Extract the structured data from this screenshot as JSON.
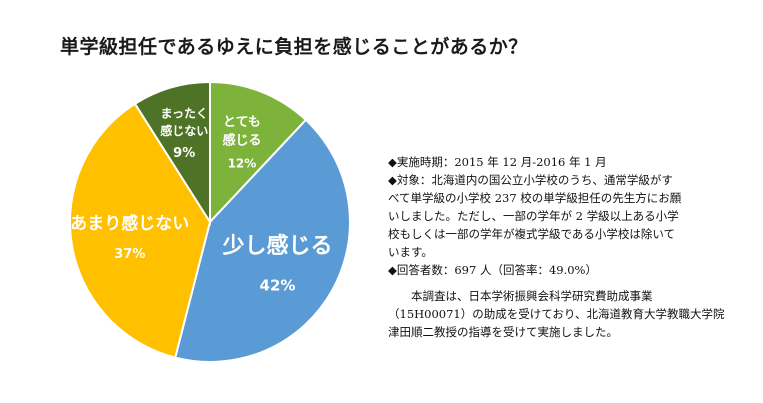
{
  "chart_data": {
    "type": "pie",
    "title": "単学級担任であるゆえに負担を感じることがあるか？",
    "slices": [
      {
        "label": "とても\n感じる",
        "value": 12,
        "value_label": "12%",
        "color": "#7db23b"
      },
      {
        "label": "少し感じる",
        "value": 42,
        "value_label": "42%",
        "color": "#5b9bd5"
      },
      {
        "label": "あまり感じない",
        "value": 37,
        "value_label": "37%",
        "color": "#ffc000"
      },
      {
        "label": "まったく\n感じない",
        "value": 9,
        "value_label": "9%",
        "color": "#4e7327"
      }
    ]
  },
  "notes": [
    "◆実施時期：2015 年 12 月-2016 年 1 月",
    "◆対象：北海道内の国公立小学校のうち、通常学級がす",
    "べて単学級の小学校 237 校の単学級担任の先生方にお願",
    "いしました。ただし、一部の学年が 2 学級以上ある小学",
    "校もしくは一部の学年が複式学級である小学校は除いて",
    "います。",
    "◆回答者数：697 人（回答率：49.0%）"
  ],
  "funding": "本調査は、日本学術振興会科学研究費助成事業（15H00071）の助成を受けており、北海道教育大学教職大学院　津田順二教授の指導を受けて実施しました。"
}
